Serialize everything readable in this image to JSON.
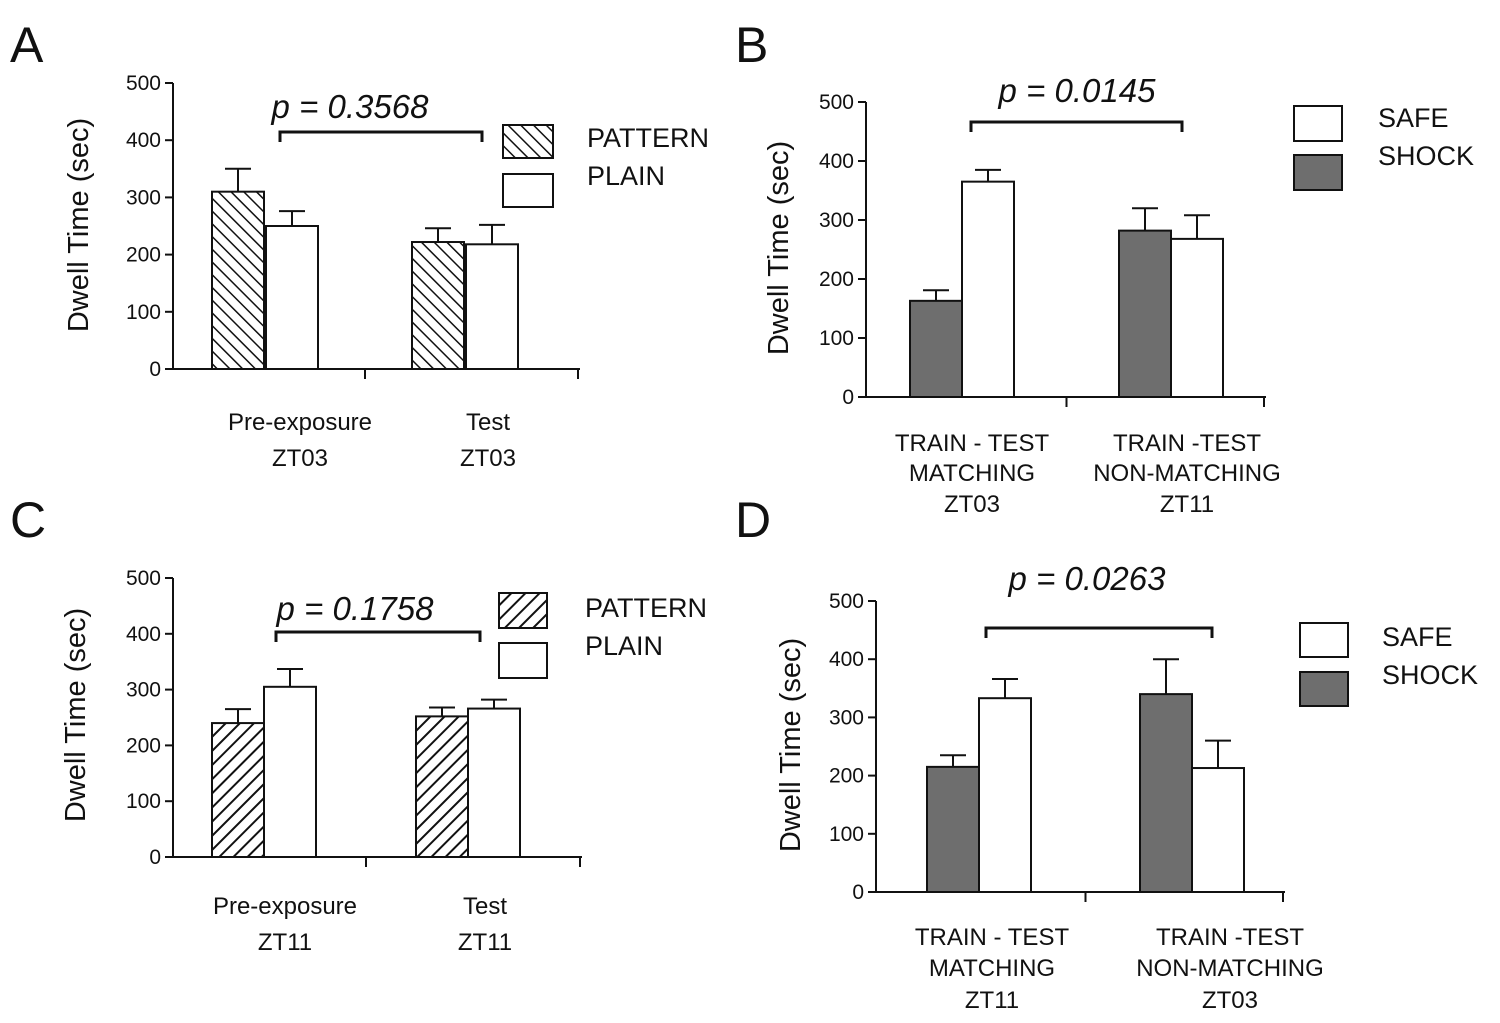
{
  "figure": {
    "panels": [
      "A",
      "B",
      "C",
      "D"
    ]
  },
  "colors": {
    "shock_fill": "#6e6e6e",
    "plain_fill": "#ffffff",
    "stroke": "#111111"
  },
  "chart_data": [
    {
      "panel": "A",
      "type": "bar",
      "ylabel": "Dwell Time (sec)",
      "ylim": [
        0,
        500
      ],
      "yticks": [
        0,
        100,
        200,
        300,
        400,
        500
      ],
      "categories": [
        [
          "Pre-exposure",
          "ZT03"
        ],
        [
          "Test",
          "ZT03"
        ]
      ],
      "series": [
        {
          "name": "PATTERN",
          "fill": "hatch-up",
          "values": [
            310,
            222
          ],
          "errors": [
            40,
            24
          ]
        },
        {
          "name": "PLAIN",
          "fill": "white",
          "values": [
            250,
            218
          ],
          "errors": [
            26,
            34
          ]
        }
      ],
      "legend": [
        "PATTERN",
        "PLAIN"
      ],
      "annotation": "p = 0.3568"
    },
    {
      "panel": "B",
      "type": "bar",
      "ylabel": "Dwell Time (sec)",
      "ylim": [
        0,
        500
      ],
      "yticks": [
        0,
        100,
        200,
        300,
        400,
        500
      ],
      "categories": [
        [
          "TRAIN - TEST",
          "MATCHING",
          "ZT03"
        ],
        [
          "TRAIN -TEST",
          "NON-MATCHING",
          "ZT11"
        ]
      ],
      "series": [
        {
          "name": "SHOCK",
          "fill": "gray",
          "values": [
            163,
            282
          ],
          "errors": [
            18,
            38
          ]
        },
        {
          "name": "SAFE",
          "fill": "white",
          "values": [
            365,
            268
          ],
          "errors": [
            20,
            40
          ]
        }
      ],
      "legend": [
        "SAFE",
        "SHOCK"
      ],
      "annotation": "p = 0.0145"
    },
    {
      "panel": "C",
      "type": "bar",
      "ylabel": "Dwell Time (sec)",
      "ylim": [
        0,
        500
      ],
      "yticks": [
        0,
        100,
        200,
        300,
        400,
        500
      ],
      "categories": [
        [
          "Pre-exposure",
          "ZT11"
        ],
        [
          "Test",
          "ZT11"
        ]
      ],
      "series": [
        {
          "name": "PATTERN",
          "fill": "hatch-down",
          "values": [
            240,
            252
          ],
          "errors": [
            25,
            16
          ]
        },
        {
          "name": "PLAIN",
          "fill": "white",
          "values": [
            305,
            266
          ],
          "errors": [
            32,
            16
          ]
        }
      ],
      "legend": [
        "PATTERN",
        "PLAIN"
      ],
      "annotation": "p = 0.1758"
    },
    {
      "panel": "D",
      "type": "bar",
      "ylabel": "Dwell Time (sec)",
      "ylim": [
        0,
        500
      ],
      "yticks": [
        0,
        100,
        200,
        300,
        400,
        500
      ],
      "categories": [
        [
          "TRAIN - TEST",
          "MATCHING",
          "ZT11"
        ],
        [
          "TRAIN -TEST",
          "NON-MATCHING",
          "ZT03"
        ]
      ],
      "series": [
        {
          "name": "SHOCK",
          "fill": "gray",
          "values": [
            215,
            340
          ],
          "errors": [
            20,
            60
          ]
        },
        {
          "name": "SAFE",
          "fill": "white",
          "values": [
            333,
            213
          ],
          "errors": [
            33,
            47
          ]
        }
      ],
      "legend": [
        "SAFE",
        "SHOCK"
      ],
      "annotation": "p = 0.0263"
    }
  ]
}
